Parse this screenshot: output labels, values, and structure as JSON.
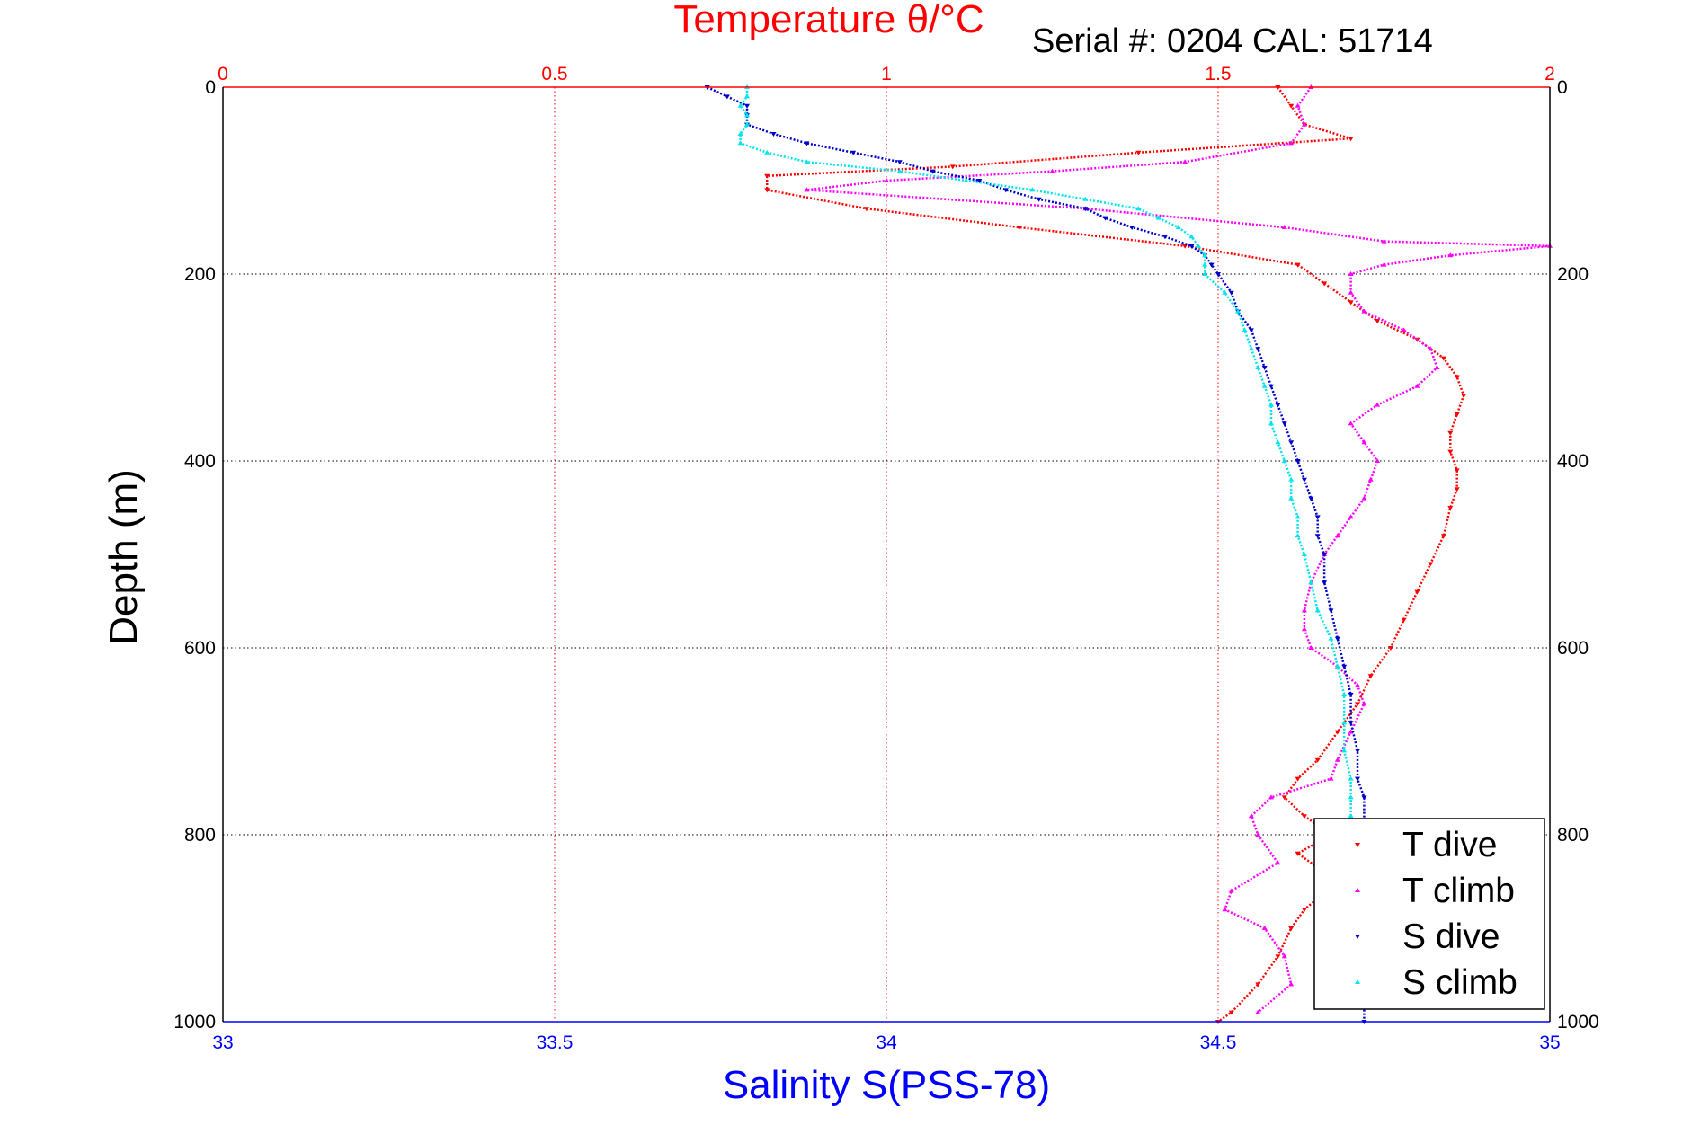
{
  "chart_data": {
    "type": "scatter",
    "title": "Temperature θ/°C",
    "annotation": "Serial #: 0204  CAL: 51714",
    "xlabel": "Salinity S(PSS-78)",
    "ylabel": "Depth (m)",
    "xlim_salinity": [
      33,
      35
    ],
    "xlim_temperature": [
      0,
      2
    ],
    "ylim": [
      1000,
      0
    ],
    "y_reversed": true,
    "grid": true,
    "legend_position": "bottom-right",
    "salinity_ticks": [
      "33",
      "33.5",
      "34",
      "34.5",
      "35"
    ],
    "temperature_ticks": [
      "0",
      "0.5",
      "1",
      "1.5",
      "2"
    ],
    "depth_ticks": [
      "0",
      "200",
      "400",
      "600",
      "800",
      "1000"
    ],
    "colors": {
      "temperature_axis": "#ff0000",
      "salinity_axis": "#0000ff",
      "t_dive": "#ff0000",
      "t_climb": "#ff00ff",
      "s_dive": "#0000cc",
      "s_climb": "#00e5ee"
    },
    "series": [
      {
        "name": "T dive",
        "axis": "temperature",
        "points": [
          [
            0,
            1.59
          ],
          [
            20,
            1.61
          ],
          [
            40,
            1.63
          ],
          [
            55,
            1.7
          ],
          [
            70,
            1.38
          ],
          [
            85,
            1.1
          ],
          [
            95,
            0.82
          ],
          [
            110,
            0.82
          ],
          [
            130,
            0.97
          ],
          [
            150,
            1.2
          ],
          [
            170,
            1.45
          ],
          [
            190,
            1.62
          ],
          [
            210,
            1.66
          ],
          [
            230,
            1.7
          ],
          [
            250,
            1.74
          ],
          [
            270,
            1.8
          ],
          [
            290,
            1.84
          ],
          [
            310,
            1.86
          ],
          [
            330,
            1.87
          ],
          [
            350,
            1.86
          ],
          [
            370,
            1.85
          ],
          [
            390,
            1.85
          ],
          [
            410,
            1.86
          ],
          [
            430,
            1.86
          ],
          [
            450,
            1.85
          ],
          [
            480,
            1.84
          ],
          [
            510,
            1.82
          ],
          [
            540,
            1.8
          ],
          [
            570,
            1.78
          ],
          [
            600,
            1.76
          ],
          [
            630,
            1.73
          ],
          [
            660,
            1.71
          ],
          [
            690,
            1.68
          ],
          [
            720,
            1.65
          ],
          [
            740,
            1.62
          ],
          [
            760,
            1.6
          ],
          [
            780,
            1.63
          ],
          [
            800,
            1.67
          ],
          [
            820,
            1.62
          ],
          [
            850,
            1.68
          ],
          [
            880,
            1.63
          ],
          [
            900,
            1.61
          ],
          [
            930,
            1.59
          ],
          [
            960,
            1.56
          ],
          [
            990,
            1.52
          ],
          [
            1000,
            1.5
          ]
        ]
      },
      {
        "name": "T climb",
        "axis": "temperature",
        "points": [
          [
            0,
            1.64
          ],
          [
            20,
            1.62
          ],
          [
            40,
            1.63
          ],
          [
            60,
            1.61
          ],
          [
            80,
            1.45
          ],
          [
            90,
            1.25
          ],
          [
            100,
            1.0
          ],
          [
            110,
            0.88
          ],
          [
            130,
            1.3
          ],
          [
            150,
            1.6
          ],
          [
            165,
            1.75
          ],
          [
            170,
            2.0
          ],
          [
            180,
            1.85
          ],
          [
            190,
            1.75
          ],
          [
            200,
            1.7
          ],
          [
            220,
            1.7
          ],
          [
            240,
            1.72
          ],
          [
            260,
            1.78
          ],
          [
            280,
            1.82
          ],
          [
            300,
            1.83
          ],
          [
            320,
            1.8
          ],
          [
            340,
            1.74
          ],
          [
            360,
            1.7
          ],
          [
            380,
            1.72
          ],
          [
            400,
            1.74
          ],
          [
            420,
            1.73
          ],
          [
            440,
            1.72
          ],
          [
            460,
            1.7
          ],
          [
            480,
            1.68
          ],
          [
            500,
            1.66
          ],
          [
            530,
            1.64
          ],
          [
            560,
            1.63
          ],
          [
            580,
            1.63
          ],
          [
            600,
            1.64
          ],
          [
            620,
            1.68
          ],
          [
            640,
            1.71
          ],
          [
            660,
            1.72
          ],
          [
            690,
            1.7
          ],
          [
            720,
            1.68
          ],
          [
            740,
            1.67
          ],
          [
            760,
            1.58
          ],
          [
            780,
            1.55
          ],
          [
            800,
            1.56
          ],
          [
            830,
            1.59
          ],
          [
            860,
            1.52
          ],
          [
            880,
            1.51
          ],
          [
            900,
            1.57
          ],
          [
            930,
            1.6
          ],
          [
            960,
            1.61
          ],
          [
            990,
            1.56
          ]
        ]
      },
      {
        "name": "S dive",
        "axis": "salinity",
        "points": [
          [
            0,
            33.73
          ],
          [
            10,
            33.76
          ],
          [
            20,
            33.79
          ],
          [
            30,
            33.79
          ],
          [
            40,
            33.79
          ],
          [
            50,
            33.83
          ],
          [
            60,
            33.88
          ],
          [
            70,
            33.95
          ],
          [
            80,
            34.02
          ],
          [
            90,
            34.07
          ],
          [
            100,
            34.14
          ],
          [
            110,
            34.18
          ],
          [
            120,
            34.23
          ],
          [
            130,
            34.3
          ],
          [
            140,
            34.33
          ],
          [
            150,
            34.37
          ],
          [
            160,
            34.42
          ],
          [
            170,
            34.46
          ],
          [
            180,
            34.48
          ],
          [
            190,
            34.49
          ],
          [
            200,
            34.5
          ],
          [
            220,
            34.52
          ],
          [
            240,
            34.53
          ],
          [
            260,
            34.55
          ],
          [
            280,
            34.56
          ],
          [
            300,
            34.57
          ],
          [
            320,
            34.58
          ],
          [
            340,
            34.59
          ],
          [
            360,
            34.6
          ],
          [
            380,
            34.61
          ],
          [
            400,
            34.62
          ],
          [
            420,
            34.63
          ],
          [
            440,
            34.64
          ],
          [
            460,
            34.65
          ],
          [
            480,
            34.65
          ],
          [
            500,
            34.66
          ],
          [
            530,
            34.66
          ],
          [
            560,
            34.67
          ],
          [
            590,
            34.68
          ],
          [
            620,
            34.69
          ],
          [
            650,
            34.7
          ],
          [
            680,
            34.7
          ],
          [
            710,
            34.71
          ],
          [
            740,
            34.71
          ],
          [
            760,
            34.72
          ],
          [
            790,
            34.72
          ],
          [
            820,
            34.72
          ],
          [
            860,
            34.72
          ],
          [
            900,
            34.72
          ],
          [
            950,
            34.72
          ],
          [
            1000,
            34.72
          ]
        ]
      },
      {
        "name": "S climb",
        "axis": "salinity",
        "points": [
          [
            0,
            33.79
          ],
          [
            10,
            33.79
          ],
          [
            20,
            33.78
          ],
          [
            30,
            33.79
          ],
          [
            40,
            33.79
          ],
          [
            50,
            33.78
          ],
          [
            60,
            33.78
          ],
          [
            70,
            33.82
          ],
          [
            80,
            33.88
          ],
          [
            90,
            34.02
          ],
          [
            100,
            34.12
          ],
          [
            110,
            34.22
          ],
          [
            120,
            34.3
          ],
          [
            130,
            34.38
          ],
          [
            140,
            34.41
          ],
          [
            150,
            34.44
          ],
          [
            160,
            34.46
          ],
          [
            170,
            34.47
          ],
          [
            180,
            34.48
          ],
          [
            190,
            34.48
          ],
          [
            200,
            34.48
          ],
          [
            220,
            34.51
          ],
          [
            240,
            34.53
          ],
          [
            260,
            34.54
          ],
          [
            280,
            34.55
          ],
          [
            300,
            34.56
          ],
          [
            320,
            34.57
          ],
          [
            340,
            34.58
          ],
          [
            360,
            34.58
          ],
          [
            380,
            34.59
          ],
          [
            400,
            34.6
          ],
          [
            420,
            34.61
          ],
          [
            440,
            34.61
          ],
          [
            460,
            34.62
          ],
          [
            480,
            34.62
          ],
          [
            500,
            34.63
          ],
          [
            530,
            34.64
          ],
          [
            560,
            34.65
          ],
          [
            590,
            34.67
          ],
          [
            620,
            34.68
          ],
          [
            650,
            34.69
          ],
          [
            680,
            34.69
          ],
          [
            710,
            34.69
          ],
          [
            740,
            34.7
          ],
          [
            760,
            34.7
          ],
          [
            780,
            34.7
          ]
        ]
      }
    ]
  }
}
